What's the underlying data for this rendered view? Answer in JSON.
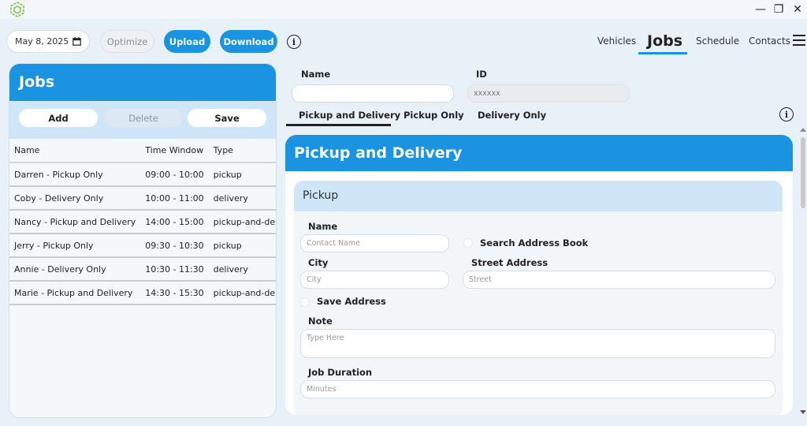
{
  "window": {
    "minimize": "—",
    "restore": "❐",
    "close": "✕"
  },
  "toolbar": {
    "date": "May 8, 2025",
    "optimize_label": "Optimize",
    "upload_label": "Upload",
    "download_label": "Download"
  },
  "nav": {
    "vehicles": "Vehicles",
    "jobs": "Jobs",
    "schedule": "Schedule",
    "contacts": "Contacts"
  },
  "left_panel": {
    "title": "Jobs",
    "add_label": "Add",
    "delete_label": "Delete",
    "save_label": "Save",
    "columns": [
      "Name",
      "Time Window",
      "Type"
    ],
    "rows": [
      [
        "Darren - Pickup Only",
        "09:00 - 10:00",
        "pickup"
      ],
      [
        "Coby - Delivery Only",
        "10:00 - 11:00",
        "delivery"
      ],
      [
        "Nancy - Pickup and Delivery",
        "14:00 - 15:00",
        "pickup-and-delivery"
      ],
      [
        "Jerry - Pickup Only",
        "09:30 - 10:30",
        "pickup"
      ],
      [
        "Annie - Delivery Only",
        "10:30 - 11:30",
        "delivery"
      ],
      [
        "Marie - Pickup and Delivery",
        "14:30 - 15:30",
        "pickup-and-delivery"
      ]
    ]
  },
  "job_form": {
    "name_label": "Name",
    "name_value": "",
    "id_label": "ID",
    "id_value": "xxxxxx",
    "tabs": [
      "Pickup and Delivery",
      "Pickup Only",
      "Delivery Only"
    ],
    "card_title": "Pickup and Delivery",
    "section_title": "Pickup",
    "contact_label": "Name",
    "contact_placeholder": "Contact Name",
    "search_address_label": "Search Address Book",
    "city_label": "City",
    "city_placeholder": "City",
    "street_label": "Street Address",
    "street_placeholder": "Street",
    "save_address_label": "Save Address",
    "note_label": "Note",
    "note_placeholder": "Type Here",
    "duration_label": "Job Duration",
    "duration_placeholder": "Minutes"
  }
}
